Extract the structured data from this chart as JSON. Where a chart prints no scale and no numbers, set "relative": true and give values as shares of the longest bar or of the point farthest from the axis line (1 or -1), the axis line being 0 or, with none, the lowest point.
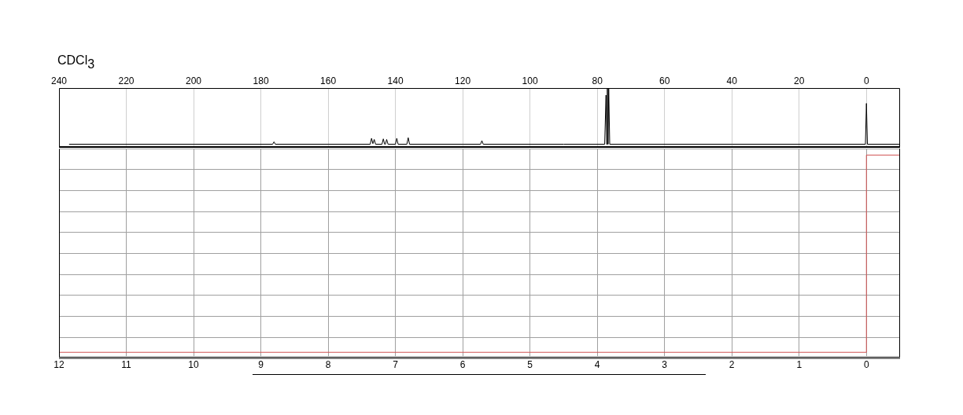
{
  "chart_data": [
    {
      "type": "line",
      "title": "CDCl$_{3}$",
      "relative": true,
      "xlim": [
        240,
        -10
      ],
      "xticks": [
        240,
        220,
        200,
        180,
        160,
        140,
        120,
        100,
        80,
        60,
        40,
        20,
        0
      ],
      "grid": "x",
      "tick_labels": "x",
      "color": "#000000",
      "x": [
        237,
        200,
        176.5,
        176.1,
        175.7,
        160,
        147.5,
        147.1,
        146.7,
        146.3,
        145.9,
        144.0,
        143.6,
        143.2,
        143.0,
        142.6,
        142.2,
        140.0,
        139.6,
        139.2,
        136.6,
        136.2,
        135.8,
        120,
        114.7,
        114.3,
        113.9,
        90,
        77.8,
        77.4,
        77.2,
        77.0,
        76.8,
        76.6,
        76.3,
        40,
        0.3,
        0,
        -0.3,
        -10
      ],
      "values": [
        0.06,
        0.06,
        0.06,
        0.1,
        0.06,
        0.06,
        0.06,
        0.16,
        0.07,
        0.14,
        0.06,
        0.06,
        0.15,
        0.06,
        0.06,
        0.14,
        0.06,
        0.06,
        0.16,
        0.06,
        0.06,
        0.17,
        0.06,
        0.06,
        0.06,
        0.12,
        0.06,
        0.06,
        0.06,
        0.89,
        0.06,
        1,
        0.06,
        1,
        0.06,
        0.06,
        0.06,
        0.75,
        0.06,
        0.06
      ]
    },
    {
      "type": "line",
      "relative": true,
      "xlim": [
        12,
        -0.5
      ],
      "xticks": [
        12,
        11,
        10,
        9,
        8,
        7,
        6,
        5,
        4,
        3,
        2,
        1,
        0
      ],
      "grid": true,
      "tick_labels": "x",
      "series": [
        {
          "color": "#c8c8c8",
          "x": [
            12,
            -0.5
          ],
          "values": [
            0.01,
            0.01
          ]
        },
        {
          "color": "#d05050",
          "x": [
            12,
            0,
            0,
            -0.5
          ],
          "values": [
            0.03,
            0.03,
            1,
            1
          ]
        }
      ]
    }
  ]
}
